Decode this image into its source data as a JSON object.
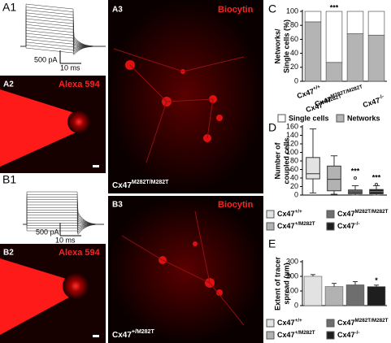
{
  "panels": {
    "A1": {
      "label": "A1",
      "scale_current": "500 pA",
      "scale_time": "10 ms"
    },
    "A2": {
      "label": "A2",
      "stain": "Alexa 594"
    },
    "A3": {
      "label": "A3",
      "stain": "Biocytin",
      "genotype": "Cx47M282T/M282T"
    },
    "B1": {
      "label": "B1",
      "scale_current": "500 pA",
      "scale_time": "10 ms"
    },
    "B2": {
      "label": "B2",
      "stain": "Alexa 594"
    },
    "B3": {
      "label": "B3",
      "stain": "Biocytin",
      "genotype": "Cx47+/M282T"
    }
  },
  "chart_data": [
    {
      "type": "stacked_bar",
      "panel_label": "C",
      "ylabel": [
        "Networks/",
        "Single cells (%)"
      ],
      "categories": [
        "Cx47+/+",
        "Cx47+/M282T",
        "Cx47M282T/M282T",
        "Cx47-/-"
      ],
      "series": [
        {
          "name": "Networks",
          "color": "#b4b4b4",
          "values": [
            85,
            27,
            68,
            66
          ]
        },
        {
          "name": "Single cells",
          "color": "#ffffff",
          "values": [
            15,
            73,
            32,
            34
          ]
        }
      ],
      "annotations": [
        null,
        "***",
        null,
        null
      ],
      "ylim": [
        0,
        100
      ],
      "yticks": [
        0,
        20,
        40,
        60,
        80,
        100
      ]
    },
    {
      "type": "box",
      "panel_label": "D",
      "ylabel": [
        "Number of",
        "coupled cells"
      ],
      "categories": [
        "Cx47+/+",
        "Cx47+/M282T",
        "Cx47M282T/M282T",
        "Cx47-/-"
      ],
      "colors": [
        "#e2e2e2",
        "#b2b2b2",
        "#6e6e6e",
        "#1e1e1e"
      ],
      "boxes": [
        {
          "min": 5,
          "q1": 38,
          "median": 50,
          "q3": 88,
          "max": 155,
          "outliers": []
        },
        {
          "min": 2,
          "q1": 10,
          "median": 37,
          "q3": 68,
          "max": 92,
          "outliers": []
        },
        {
          "min": 0,
          "q1": 3,
          "median": 7,
          "q3": 12,
          "max": 22,
          "outliers": [
            40
          ]
        },
        {
          "min": 0,
          "q1": 3,
          "median": 8,
          "q3": 13,
          "max": 22,
          "outliers": [
            25
          ]
        }
      ],
      "annotations": [
        null,
        null,
        "***",
        "***"
      ],
      "ylim": [
        0,
        160
      ],
      "yticks": [
        0,
        20,
        40,
        60,
        80,
        100,
        120,
        140,
        160
      ]
    },
    {
      "type": "bar",
      "panel_label": "E",
      "ylabel": [
        "Extent of tracer",
        "spread (µm)"
      ],
      "categories": [
        "Cx47+/+",
        "Cx47+/M282T",
        "Cx47M282T/M282T",
        "Cx47-/-"
      ],
      "colors": [
        "#e2e2e2",
        "#b2b2b2",
        "#6e6e6e",
        "#1e1e1e"
      ],
      "values": [
        200,
        130,
        142,
        130
      ],
      "errors": [
        12,
        22,
        22,
        10
      ],
      "annotations": [
        null,
        null,
        null,
        "*"
      ],
      "ylim": [
        0,
        300
      ],
      "yticks": [
        0,
        100,
        200,
        300
      ]
    }
  ]
}
